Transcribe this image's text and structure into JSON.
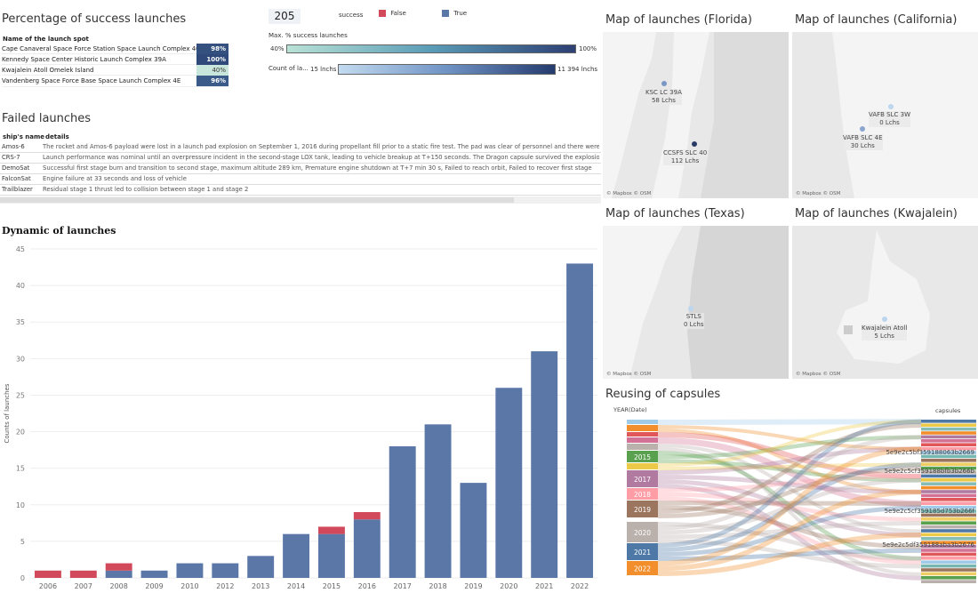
{
  "success_table": {
    "title": "Percentage of success launches",
    "header": "Name of the launch spot",
    "rows": [
      {
        "name": "Cape Canaveral Space Force Station Space Launch Complex 40",
        "pct": "98%",
        "color": "#33507f"
      },
      {
        "name": "Kennedy Space Center Historic Launch Complex 39A",
        "pct": "100%",
        "color": "#2f4a7a"
      },
      {
        "name": "Kwajalein Atoll Omelek Island",
        "pct": "40%",
        "color": "#c9e6dc"
      },
      {
        "name": "Vandenberg Space Force Base Space Launch Complex 4E",
        "pct": "96%",
        "color": "#3a5a89"
      }
    ]
  },
  "kpi": {
    "total": "205"
  },
  "legend": {
    "title": "success",
    "items": [
      {
        "label": "False",
        "color": "#d1495b"
      },
      {
        "label": "True",
        "color": "#5b77a8"
      }
    ]
  },
  "filters": {
    "max_success": {
      "label": "Max. % success launches",
      "min": "40%",
      "max": "100%"
    },
    "count": {
      "label": "Count of la...",
      "min": "15 lnchs",
      "max": "11 394 lnchs"
    }
  },
  "failed_table": {
    "title": "Failed launches",
    "col_ship": "ship's name",
    "col_details": "details",
    "rows": [
      {
        "ship": "Amos-6",
        "details": "The rocket and Amos-6 payload were lost in a launch pad explosion on September 1, 2016 during propellant fill prior to a static fire test. The pad was clear of personnel and there were no injuries."
      },
      {
        "ship": "CRS-7",
        "details": "Launch performance was nominal until an overpressure incident in the second-stage LOX tank, leading to vehicle breakup at T+150 seconds. The Dragon capsule survived the explosion but was lost."
      },
      {
        "ship": "DemoSat",
        "details": "Successful first stage burn and transition to second stage, maximum altitude 289 km, Premature engine shutdown at T+7 min 30 s, Failed to reach orbit, Failed to recover first stage"
      },
      {
        "ship": "FalconSat",
        "details": "Engine failure at 33 seconds and loss of vehicle"
      },
      {
        "ship": "Trailblazer",
        "details": "Residual stage 1 thrust led to collision between stage 1 and stage 2"
      }
    ]
  },
  "chart_data": {
    "type": "bar",
    "title": "Dynamic of launches",
    "ylabel": "Counts of launches",
    "xlabel": "",
    "ylim": [
      0,
      45
    ],
    "yticks": [
      0,
      5,
      10,
      15,
      20,
      25,
      30,
      35,
      40,
      45
    ],
    "categories": [
      "2006",
      "2007",
      "2008",
      "2009",
      "2010",
      "2012",
      "2013",
      "2014",
      "2015",
      "2016",
      "2017",
      "2018",
      "2019",
      "2020",
      "2021",
      "2022"
    ],
    "series": [
      {
        "name": "True",
        "color": "#5b77a8",
        "values": [
          0,
          0,
          1,
          1,
          2,
          2,
          3,
          6,
          6,
          8,
          18,
          21,
          13,
          26,
          31,
          43
        ]
      },
      {
        "name": "False",
        "color": "#d1495b",
        "values": [
          1,
          1,
          1,
          0,
          0,
          0,
          0,
          0,
          1,
          1,
          0,
          0,
          0,
          0,
          0,
          0
        ]
      }
    ],
    "stacked": true
  },
  "maps": {
    "florida": {
      "title": "Map of launches (Florida)",
      "sites": [
        {
          "line1": "KSC LC 39A",
          "line2": "58 Lchs"
        },
        {
          "line1": "CCSFS SLC 40",
          "line2": "112 Lchs"
        }
      ]
    },
    "california": {
      "title": "Map of launches (California)",
      "sites": [
        {
          "line1": "VAFB SLC 3W",
          "line2": "0 Lchs"
        },
        {
          "line1": "VAFB SLC 4E",
          "line2": "30 Lchs"
        }
      ]
    },
    "texas": {
      "title": "Map of launches (Texas)",
      "sites": [
        {
          "line1": "STLS",
          "line2": "0 Lchs"
        }
      ]
    },
    "kwajalein": {
      "title": "Map of launches (Kwajalein)",
      "sites": [
        {
          "line1": "Kwajalein Atoll",
          "line2": "5 Lchs"
        }
      ]
    },
    "attribution": "© Mapbox  © OSM"
  },
  "sankey": {
    "title": "Reusing of capsules",
    "left_header": "YEAR(Date)",
    "right_header": "capsules",
    "years": [
      "2015",
      "2017",
      "2018",
      "2019",
      "2020",
      "2021",
      "2022"
    ],
    "capsules": [
      "5e9e2c5bf359188063b2669",
      "5e9e2c5cf359188bfb3b266b",
      "5e9e2c5cf359185d753b266f",
      "5e9e2c5df359188aba3b2676"
    ]
  }
}
